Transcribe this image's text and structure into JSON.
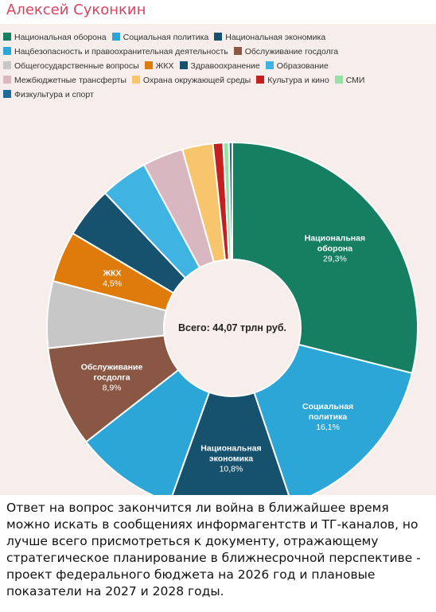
{
  "post": {
    "author": "Алексей Суконкин",
    "caption": "Ответ на вопрос закончится ли война в ближайшее время можно искать в сообщениях информагентств и ТГ-каналов, но лучше всего присмотреться к документу, отражающему стратегическое планирование в ближнесрочной перспективе - проект федерального бюджета на 2026 год и плановые показатели на 2027 и 2028 годы."
  },
  "chart_data": {
    "type": "pie",
    "donut": true,
    "center_label": "Всего: 44,07 трлн руб.",
    "legend_placement": "top",
    "slices": [
      {
        "name": "Национальная оборона",
        "value": 29.3,
        "color": "#167f62",
        "label_lines": [
          "Национальная",
          "оборона"
        ],
        "value_label": "29,3%"
      },
      {
        "name": "Социальная политика",
        "value": 16.1,
        "color": "#2ba6d6",
        "label_lines": [
          "Социальная",
          "политика"
        ],
        "value_label": "16,1%"
      },
      {
        "name": "Национальная экономика",
        "value": 10.8,
        "color": "#16516e",
        "label_lines": [
          "Национальная",
          "экономика"
        ],
        "value_label": "10,8%"
      },
      {
        "name": "Нацбезопасность и правоохранительная деятельность",
        "value": 9.1,
        "color": "#2ba6d6"
      },
      {
        "name": "Обслуживание госдолга",
        "value": 8.9,
        "color": "#8b5745",
        "label_lines": [
          "Обслуживание",
          "госдолга"
        ],
        "value_label": "8,9%"
      },
      {
        "name": "Общегосударственные вопросы",
        "value": 5.9,
        "color": "#c7c7c7"
      },
      {
        "name": "ЖКХ",
        "value": 4.5,
        "color": "#de7b0a",
        "label_lines": [
          "ЖКХ"
        ],
        "value_label": "4,5%"
      },
      {
        "name": "Здравоохранение",
        "value": 4.5,
        "color": "#16516e"
      },
      {
        "name": "Образование",
        "value": 4.2,
        "color": "#3fb3e2"
      },
      {
        "name": "Межбюджетные трансферты",
        "value": 3.6,
        "color": "#d9b7c0"
      },
      {
        "name": "Охрана окружающей среды",
        "value": 2.7,
        "color": "#f7c56b"
      },
      {
        "name": "Культура и кино",
        "value": 0.9,
        "color": "#c51f1f"
      },
      {
        "name": "СМИ",
        "value": 0.5,
        "color": "#98e0a4"
      },
      {
        "name": "Физкультура и спорт",
        "value": 0.3,
        "color": "#1e6b9c"
      }
    ],
    "legend": [
      {
        "label": "Национальная оборона",
        "color": "#167f62"
      },
      {
        "label": "Социальная политика",
        "color": "#2ba6d6"
      },
      {
        "label": "Национальная экономика",
        "color": "#16516e"
      },
      {
        "label": "Нацбезопасность и правоохранительная деятельность",
        "color": "#2ba6d6"
      },
      {
        "label": "Обслуживание госдолга",
        "color": "#8b5745"
      },
      {
        "label": "Общегосударственные вопросы",
        "color": "#c7c7c7"
      },
      {
        "label": "ЖКХ",
        "color": "#de7b0a"
      },
      {
        "label": "Здравоохранение",
        "color": "#16516e"
      },
      {
        "label": "Образование",
        "color": "#3fb3e2"
      },
      {
        "label": "Межбюджетные трансферты",
        "color": "#d9b7c0"
      },
      {
        "label": "Охрана окружающей среды",
        "color": "#f7c56b"
      },
      {
        "label": "Культура и кино",
        "color": "#c51f1f"
      },
      {
        "label": "СМИ",
        "color": "#98e0a4"
      },
      {
        "label": "Физкультура и спорт",
        "color": "#1e6b9c"
      }
    ]
  }
}
